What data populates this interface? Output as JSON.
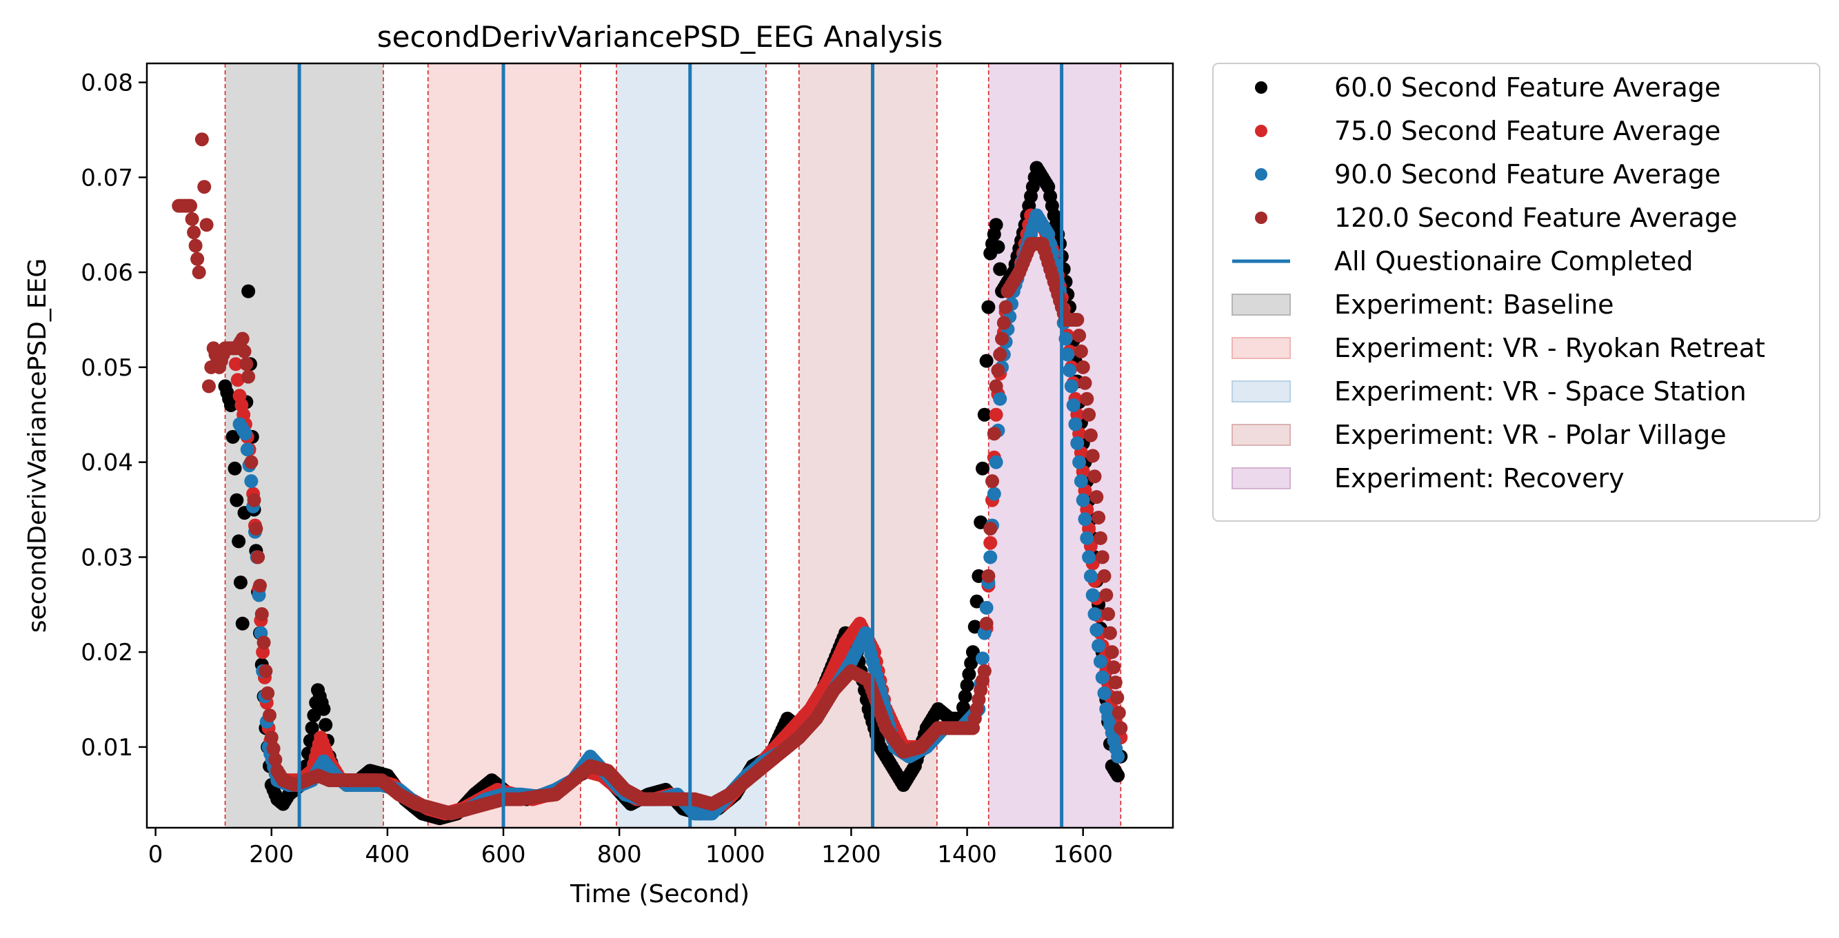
{
  "chart_data": {
    "type": "scatter",
    "title": "secondDerivVariancePSD_EEG Analysis",
    "xlabel": "Time (Second)",
    "ylabel": "secondDerivVariancePSD_EEG",
    "xlim": [
      -15,
      1755
    ],
    "ylim": [
      0.0015,
      0.082
    ],
    "xticks": [
      0,
      200,
      400,
      600,
      800,
      1000,
      1200,
      1400,
      1600
    ],
    "yticks": [
      0.01,
      0.02,
      0.03,
      0.04,
      0.05,
      0.06,
      0.07,
      0.08
    ],
    "xtick_labels": [
      "0",
      "200",
      "400",
      "600",
      "800",
      "1000",
      "1200",
      "1400",
      "1600"
    ],
    "ytick_labels": [
      "0.01",
      "0.02",
      "0.03",
      "0.04",
      "0.05",
      "0.06",
      "0.07",
      "0.08"
    ],
    "grid": false,
    "legend_placement": "outside-upper-right",
    "colors": {
      "s60": "#000000",
      "s75": "#d62728",
      "s90": "#1f77b4",
      "s120": "#a52a2a",
      "questionnaire": "#1f77b4",
      "boundary": "#d62728",
      "baseline": "#d9d9d9",
      "ryokan": "#f9dcdc",
      "space": "#dee9f3",
      "polar": "#f0dcdc",
      "recovery": "#ecd9ec"
    },
    "phases": [
      {
        "name": "Experiment: Baseline",
        "start": 120,
        "end": 393,
        "color": "#d9d9d9"
      },
      {
        "name": "Experiment: VR - Ryokan Retreat",
        "start": 470,
        "end": 733,
        "color": "#f9dcdc"
      },
      {
        "name": "Experiment: VR - Space Station",
        "start": 795,
        "end": 1053,
        "color": "#dee9f3"
      },
      {
        "name": "Experiment: VR - Polar Village",
        "start": 1110,
        "end": 1348,
        "color": "#f0dcdc"
      },
      {
        "name": "Experiment: Recovery",
        "start": 1437,
        "end": 1665,
        "color": "#ecd9ec"
      }
    ],
    "questionnaire_completed": [
      248,
      600,
      922,
      1237,
      1563
    ],
    "series": [
      {
        "name": "60.0 Second Feature Average",
        "color": "#000000",
        "x": [
          120,
          130,
          140,
          150,
          160,
          170,
          180,
          190,
          200,
          210,
          220,
          230,
          240,
          250,
          260,
          270,
          280,
          290,
          300,
          310,
          330,
          350,
          370,
          400,
          430,
          460,
          490,
          520,
          550,
          580,
          610,
          640,
          670,
          700,
          730,
          760,
          790,
          820,
          850,
          880,
          910,
          940,
          970,
          1000,
          1030,
          1060,
          1090,
          1110,
          1130,
          1150,
          1170,
          1190,
          1210,
          1230,
          1250,
          1270,
          1290,
          1310,
          1330,
          1350,
          1370,
          1390,
          1410,
          1420,
          1430,
          1440,
          1450,
          1460,
          1480,
          1500,
          1520,
          1540,
          1560,
          1580,
          1600,
          1620,
          1640,
          1650,
          1660,
          1665
        ],
        "y": [
          0.048,
          0.046,
          0.036,
          0.023,
          0.058,
          0.035,
          0.022,
          0.012,
          0.006,
          0.0045,
          0.004,
          0.005,
          0.0055,
          0.006,
          0.008,
          0.012,
          0.016,
          0.014,
          0.009,
          0.007,
          0.006,
          0.0065,
          0.0075,
          0.007,
          0.0045,
          0.003,
          0.0025,
          0.003,
          0.005,
          0.0065,
          0.005,
          0.0045,
          0.005,
          0.0055,
          0.007,
          0.008,
          0.006,
          0.004,
          0.005,
          0.0055,
          0.0035,
          0.003,
          0.0035,
          0.005,
          0.008,
          0.009,
          0.013,
          0.012,
          0.014,
          0.016,
          0.019,
          0.022,
          0.02,
          0.014,
          0.01,
          0.008,
          0.006,
          0.008,
          0.012,
          0.014,
          0.013,
          0.013,
          0.02,
          0.028,
          0.045,
          0.062,
          0.065,
          0.058,
          0.06,
          0.065,
          0.071,
          0.069,
          0.063,
          0.055,
          0.042,
          0.03,
          0.015,
          0.008,
          0.007,
          0.009
        ]
      },
      {
        "name": "75.0 Second Feature Average",
        "color": "#d62728",
        "x": [
          135,
          145,
          155,
          165,
          175,
          185,
          195,
          205,
          215,
          230,
          250,
          270,
          285,
          300,
          320,
          350,
          380,
          410,
          440,
          470,
          500,
          530,
          560,
          590,
          620,
          650,
          680,
          710,
          740,
          770,
          800,
          830,
          860,
          890,
          920,
          950,
          980,
          1010,
          1040,
          1070,
          1100,
          1130,
          1160,
          1190,
          1215,
          1240,
          1260,
          1290,
          1320,
          1350,
          1380,
          1410,
          1430,
          1450,
          1470,
          1490,
          1510,
          1530,
          1550,
          1570,
          1590,
          1610,
          1630,
          1650,
          1665
        ],
        "y": [
          0.052,
          0.047,
          0.044,
          0.04,
          0.03,
          0.02,
          0.012,
          0.008,
          0.0065,
          0.0065,
          0.0065,
          0.0075,
          0.011,
          0.0085,
          0.0065,
          0.0065,
          0.0065,
          0.006,
          0.0045,
          0.0035,
          0.003,
          0.0035,
          0.0045,
          0.0055,
          0.005,
          0.0045,
          0.005,
          0.006,
          0.0075,
          0.007,
          0.0055,
          0.0045,
          0.0045,
          0.005,
          0.004,
          0.003,
          0.004,
          0.006,
          0.008,
          0.01,
          0.012,
          0.014,
          0.017,
          0.021,
          0.023,
          0.02,
          0.014,
          0.01,
          0.01,
          0.012,
          0.012,
          0.012,
          0.018,
          0.045,
          0.058,
          0.06,
          0.066,
          0.065,
          0.062,
          0.055,
          0.045,
          0.033,
          0.022,
          0.014,
          0.011
        ]
      },
      {
        "name": "90.0 Second Feature Average",
        "color": "#1f77b4",
        "x": [
          145,
          155,
          165,
          175,
          185,
          195,
          210,
          230,
          250,
          270,
          290,
          310,
          330,
          360,
          390,
          420,
          450,
          480,
          510,
          540,
          570,
          600,
          630,
          660,
          690,
          720,
          750,
          780,
          810,
          840,
          870,
          900,
          930,
          960,
          990,
          1020,
          1050,
          1080,
          1110,
          1140,
          1170,
          1200,
          1225,
          1250,
          1275,
          1300,
          1330,
          1360,
          1390,
          1420,
          1440,
          1460,
          1480,
          1500,
          1520,
          1540,
          1560,
          1580,
          1600,
          1620,
          1640,
          1660
        ],
        "y": [
          0.044,
          0.043,
          0.038,
          0.03,
          0.018,
          0.01,
          0.0065,
          0.006,
          0.006,
          0.0065,
          0.0085,
          0.007,
          0.006,
          0.006,
          0.006,
          0.0055,
          0.004,
          0.0035,
          0.003,
          0.0035,
          0.0045,
          0.005,
          0.005,
          0.0048,
          0.0055,
          0.0065,
          0.009,
          0.007,
          0.005,
          0.0045,
          0.0045,
          0.005,
          0.003,
          0.003,
          0.005,
          0.007,
          0.0085,
          0.0095,
          0.011,
          0.013,
          0.016,
          0.019,
          0.022,
          0.016,
          0.01,
          0.009,
          0.01,
          0.012,
          0.012,
          0.014,
          0.03,
          0.05,
          0.058,
          0.062,
          0.066,
          0.064,
          0.058,
          0.048,
          0.036,
          0.024,
          0.014,
          0.009
        ]
      },
      {
        "name": "120.0 Second Feature Average",
        "color": "#a52a2a",
        "x": [
          40,
          60,
          75,
          80,
          84,
          88,
          92,
          100,
          110,
          120,
          130,
          140,
          150,
          160,
          165,
          170,
          180,
          190,
          200,
          210,
          220,
          240,
          260,
          280,
          300,
          330,
          360,
          390,
          420,
          450,
          480,
          510,
          540,
          570,
          600,
          630,
          660,
          690,
          720,
          750,
          780,
          810,
          840,
          870,
          900,
          930,
          960,
          990,
          1020,
          1050,
          1080,
          1110,
          1140,
          1170,
          1200,
          1230,
          1260,
          1290,
          1320,
          1350,
          1380,
          1410,
          1430,
          1450,
          1470,
          1490,
          1510,
          1530,
          1550,
          1570,
          1590,
          1610,
          1630,
          1650,
          1665
        ],
        "y": [
          0.067,
          0.067,
          0.06,
          0.074,
          0.069,
          0.065,
          0.048,
          0.052,
          0.05,
          0.052,
          0.052,
          0.052,
          0.053,
          0.049,
          0.04,
          0.036,
          0.027,
          0.018,
          0.011,
          0.0075,
          0.0065,
          0.006,
          0.0065,
          0.007,
          0.0065,
          0.0065,
          0.0065,
          0.0065,
          0.005,
          0.004,
          0.0035,
          0.003,
          0.0035,
          0.004,
          0.0045,
          0.0045,
          0.0048,
          0.005,
          0.0065,
          0.008,
          0.0075,
          0.0055,
          0.0045,
          0.0045,
          0.0045,
          0.0045,
          0.004,
          0.005,
          0.0065,
          0.008,
          0.0095,
          0.011,
          0.013,
          0.016,
          0.018,
          0.017,
          0.012,
          0.0095,
          0.01,
          0.012,
          0.012,
          0.012,
          0.018,
          0.048,
          0.058,
          0.06,
          0.063,
          0.063,
          0.059,
          0.055,
          0.055,
          0.045,
          0.032,
          0.02,
          0.012
        ]
      }
    ],
    "legend": [
      {
        "label": "60.0 Second Feature Average",
        "kind": "marker",
        "color": "#000000"
      },
      {
        "label": "75.0 Second Feature Average",
        "kind": "marker",
        "color": "#d62728"
      },
      {
        "label": "90.0 Second Feature Average",
        "kind": "marker",
        "color": "#1f77b4"
      },
      {
        "label": "120.0 Second Feature Average",
        "kind": "marker",
        "color": "#a52a2a"
      },
      {
        "label": "All Questionaire Completed",
        "kind": "line",
        "color": "#1f77b4"
      },
      {
        "label": "Experiment: Baseline",
        "kind": "patch",
        "color": "#d9d9d9",
        "edge": "#b5b5b5"
      },
      {
        "label": "Experiment: VR - Ryokan Retreat",
        "kind": "patch",
        "color": "#f9dcdc",
        "edge": "#efb5b5"
      },
      {
        "label": "Experiment: VR - Space Station",
        "kind": "patch",
        "color": "#dee9f3",
        "edge": "#b9d0e6"
      },
      {
        "label": "Experiment: VR - Polar Village",
        "kind": "patch",
        "color": "#f0dcdc",
        "edge": "#dbb1b1"
      },
      {
        "label": "Experiment: Recovery",
        "kind": "patch",
        "color": "#ecd9ec",
        "edge": "#d2b2d2"
      }
    ]
  }
}
